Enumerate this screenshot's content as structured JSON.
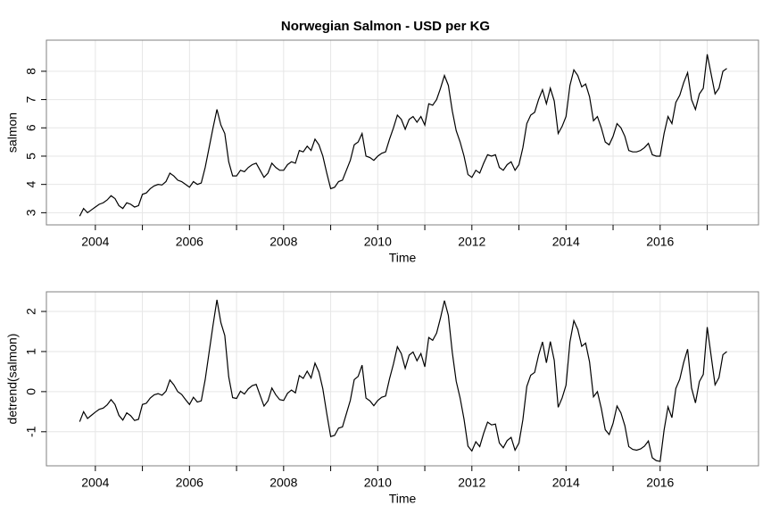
{
  "chart_data": [
    {
      "type": "line",
      "title": "Norwegian Salmon - USD per KG",
      "xlabel": "Time",
      "ylabel": "salmon",
      "start": 2003.667,
      "frequency": 12,
      "color": "#000000",
      "xlim": [
        2002.96,
        2018.09
      ],
      "ylim": [
        2.57,
        9.1
      ],
      "xticks": [
        2004,
        2006,
        2008,
        2010,
        2012,
        2014,
        2016
      ],
      "xminorticks": [
        2005,
        2007,
        2009,
        2011,
        2013,
        2015,
        2017
      ],
      "yticks": [
        3,
        4,
        5,
        6,
        7,
        8
      ],
      "grid": true,
      "values": [
        2.88,
        3.15,
        3.0,
        3.1,
        3.2,
        3.3,
        3.35,
        3.45,
        3.6,
        3.5,
        3.25,
        3.15,
        3.35,
        3.3,
        3.2,
        3.25,
        3.65,
        3.7,
        3.85,
        3.95,
        4.0,
        3.98,
        4.1,
        4.4,
        4.3,
        4.15,
        4.1,
        4.0,
        3.9,
        4.1,
        4.0,
        4.05,
        4.6,
        5.3,
        6.0,
        6.65,
        6.1,
        5.8,
        4.8,
        4.3,
        4.3,
        4.5,
        4.45,
        4.6,
        4.7,
        4.75,
        4.5,
        4.25,
        4.4,
        4.75,
        4.6,
        4.5,
        4.5,
        4.7,
        4.8,
        4.75,
        5.2,
        5.15,
        5.35,
        5.2,
        5.6,
        5.4,
        5.0,
        4.4,
        3.85,
        3.9,
        4.1,
        4.15,
        4.5,
        4.85,
        5.4,
        5.5,
        5.8,
        5.0,
        4.95,
        4.85,
        5.0,
        5.1,
        5.15,
        5.6,
        6.0,
        6.45,
        6.3,
        5.95,
        6.3,
        6.4,
        6.2,
        6.4,
        6.1,
        6.85,
        6.8,
        7.0,
        7.4,
        7.85,
        7.5,
        6.6,
        5.9,
        5.5,
        5.0,
        4.35,
        4.25,
        4.5,
        4.4,
        4.75,
        5.05,
        5.0,
        5.05,
        4.6,
        4.5,
        4.7,
        4.8,
        4.5,
        4.7,
        5.3,
        6.15,
        6.45,
        6.55,
        7.0,
        7.35,
        6.85,
        7.4,
        6.95,
        5.8,
        6.05,
        6.4,
        7.5,
        8.05,
        7.85,
        7.45,
        7.55,
        7.1,
        6.25,
        6.4,
        6.0,
        5.5,
        5.4,
        5.7,
        6.15,
        6.0,
        5.7,
        5.2,
        5.15,
        5.15,
        5.2,
        5.3,
        5.45,
        5.05,
        5.0,
        5.0,
        5.8,
        6.4,
        6.15,
        6.9,
        7.15,
        7.6,
        7.95,
        7.0,
        6.65,
        7.2,
        7.4,
        8.6,
        7.9,
        7.2,
        7.4,
        8.0,
        8.1
      ]
    },
    {
      "type": "line",
      "xlabel": "Time",
      "ylabel": "detrend(salmon)",
      "start": 2003.667,
      "frequency": 12,
      "color": "#000000",
      "xlim": [
        2002.96,
        2018.09
      ],
      "ylim": [
        -1.85,
        2.49
      ],
      "xticks": [
        2004,
        2006,
        2008,
        2010,
        2012,
        2014,
        2016
      ],
      "xminorticks": [
        2005,
        2007,
        2009,
        2011,
        2013,
        2015,
        2017
      ],
      "yticks": [
        -1,
        0,
        1,
        2
      ],
      "grid": true,
      "values": [
        -0.75,
        -0.5,
        -0.67,
        -0.59,
        -0.51,
        -0.44,
        -0.41,
        -0.33,
        -0.2,
        -0.32,
        -0.59,
        -0.71,
        -0.53,
        -0.6,
        -0.72,
        -0.69,
        -0.32,
        -0.29,
        -0.16,
        -0.08,
        -0.05,
        -0.09,
        0.01,
        0.29,
        0.17,
        0.0,
        -0.07,
        -0.2,
        -0.32,
        -0.14,
        -0.26,
        -0.23,
        0.3,
        0.98,
        1.66,
        2.29,
        1.72,
        1.4,
        0.37,
        -0.15,
        -0.17,
        0.01,
        -0.06,
        0.07,
        0.15,
        0.18,
        -0.09,
        -0.36,
        -0.23,
        0.09,
        -0.08,
        -0.2,
        -0.22,
        -0.04,
        0.04,
        -0.03,
        0.4,
        0.33,
        0.51,
        0.34,
        0.71,
        0.49,
        0.07,
        -0.55,
        -1.12,
        -1.09,
        -0.91,
        -0.88,
        -0.55,
        -0.22,
        0.3,
        0.38,
        0.66,
        -0.16,
        -0.23,
        -0.35,
        -0.22,
        -0.14,
        -0.11,
        0.32,
        0.69,
        1.12,
        0.95,
        0.58,
        0.91,
        0.99,
        0.77,
        0.95,
        0.62,
        1.35,
        1.28,
        1.46,
        1.84,
        2.27,
        1.9,
        0.98,
        0.26,
        -0.16,
        -0.69,
        -1.36,
        -1.48,
        -1.25,
        -1.37,
        -1.04,
        -0.76,
        -0.83,
        -0.81,
        -1.28,
        -1.4,
        -1.22,
        -1.14,
        -1.46,
        -1.28,
        -0.7,
        0.13,
        0.41,
        0.48,
        0.91,
        1.24,
        0.72,
        1.25,
        0.78,
        -0.39,
        -0.16,
        0.16,
        1.24,
        1.77,
        1.55,
        1.13,
        1.21,
        0.74,
        -0.13,
        0.0,
        -0.42,
        -0.95,
        -1.07,
        -0.79,
        -0.36,
        -0.53,
        -0.85,
        -1.37,
        -1.44,
        -1.46,
        -1.43,
        -1.36,
        -1.23,
        -1.65,
        -1.72,
        -1.74,
        -0.96,
        -0.38,
        -0.65,
        0.08,
        0.31,
        0.73,
        1.06,
        0.09,
        -0.28,
        0.25,
        0.43,
        1.61,
        0.89,
        0.17,
        0.35,
        0.92,
        1.0
      ]
    }
  ]
}
